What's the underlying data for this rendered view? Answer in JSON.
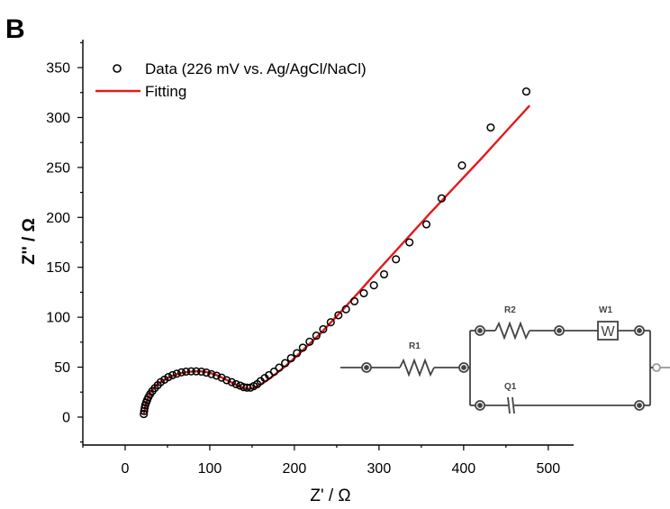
{
  "panel_label": "B",
  "chart_data": {
    "type": "scatter",
    "xlabel": "Z' / Ω",
    "ylabel": "Z'' / Ω",
    "xlim": [
      -50,
      530
    ],
    "ylim": [
      -28,
      378
    ],
    "xticks": [
      0,
      100,
      200,
      300,
      400,
      500
    ],
    "yticks": [
      0,
      50,
      100,
      150,
      200,
      250,
      300,
      350
    ],
    "legend_position": "top-left",
    "series": [
      {
        "name": "Data (226 mV vs. Ag/AgCl/NaCl)",
        "kind": "scatter",
        "color": "#000000",
        "x": [
          22,
          22.5,
          23,
          23.8,
          24.8,
          26,
          27.5,
          29.5,
          32,
          35,
          38.5,
          42,
          46.5,
          51,
          56,
          61,
          66.5,
          72,
          78,
          84,
          90,
          96,
          102,
          108,
          114,
          120,
          126,
          131,
          136,
          140,
          144,
          148,
          152,
          156,
          160,
          165,
          170,
          176,
          182,
          189,
          196,
          203,
          210,
          218,
          226,
          234,
          243,
          252,
          261,
          271,
          282,
          294,
          306,
          320,
          336,
          356,
          374,
          398,
          432,
          474
        ],
        "y": [
          3,
          6,
          9,
          12,
          14.5,
          17,
          20,
          23,
          26,
          29,
          32,
          35,
          37.5,
          40,
          42,
          43.5,
          44.8,
          45.5,
          45.8,
          45.8,
          45.5,
          44.5,
          43,
          41.5,
          39.5,
          37,
          35,
          33,
          31.5,
          30,
          29.5,
          29.5,
          31,
          33,
          36,
          39,
          42,
          45.5,
          49.5,
          54,
          59,
          64,
          69.5,
          75.5,
          81.5,
          88,
          95,
          102,
          108,
          116,
          124,
          132,
          143,
          158,
          175,
          193,
          219,
          252,
          290,
          326
        ]
      },
      {
        "name": "Fitting",
        "kind": "line",
        "color": "#e31a1c",
        "x": [
          22,
          24,
          27,
          31,
          36,
          42,
          50,
          58,
          66,
          74,
          82,
          90,
          98,
          106,
          114,
          122,
          130,
          138,
          146,
          154,
          162,
          170,
          180,
          190,
          200,
          215,
          230,
          250,
          275,
          300,
          330,
          360,
          390,
          420,
          450,
          478
        ],
        "y": [
          3,
          11,
          19,
          26,
          31,
          35,
          39,
          42,
          44,
          45.2,
          45.8,
          45.8,
          44.8,
          42.8,
          39.8,
          36.3,
          32.8,
          29.8,
          28.5,
          30,
          33.5,
          38,
          44.5,
          51.5,
          59,
          71,
          83,
          101,
          124,
          148,
          176,
          204,
          231,
          258,
          286,
          312
        ]
      }
    ]
  },
  "circuit": {
    "labels": {
      "r1": "R1",
      "r2": "R2",
      "w1": "W1",
      "w_box": "W",
      "q1": "Q1"
    }
  }
}
